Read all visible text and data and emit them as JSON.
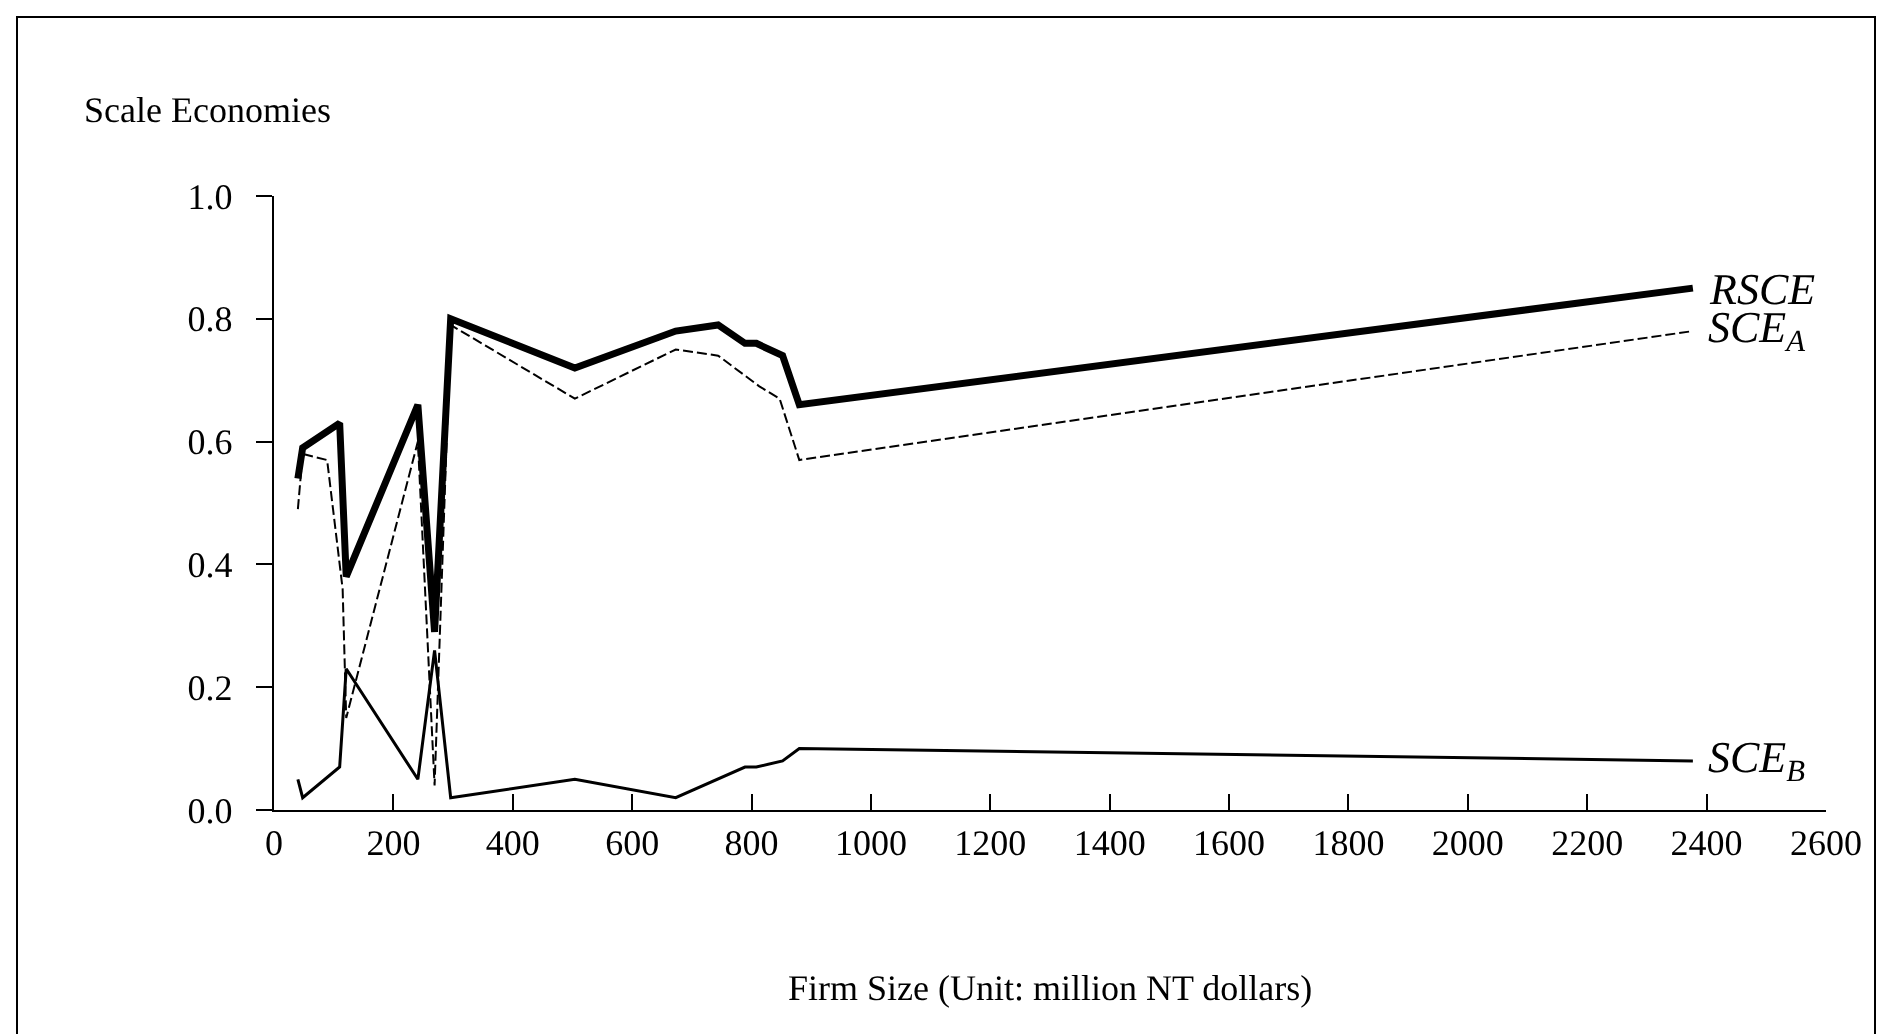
{
  "chart_data": {
    "type": "line",
    "xlabel": "Firm Size (Unit: million NT dollars)",
    "ylabel": "Scale Economies",
    "xlim": [
      0,
      2600
    ],
    "xticks": [
      0,
      200,
      400,
      600,
      800,
      1000,
      1200,
      1400,
      1600,
      1800,
      2000,
      2200,
      2400,
      2600
    ],
    "ylim": [
      0,
      1
    ],
    "yticks": [
      {
        "value": 0,
        "label": "0.0"
      },
      {
        "value": 0.2,
        "label": "0.2"
      },
      {
        "value": 0.4,
        "label": "0.4"
      },
      {
        "value": 0.6,
        "label": "0.6"
      },
      {
        "value": 0.8,
        "label": "0.8"
      },
      {
        "value": 1,
        "label": "1.0"
      }
    ],
    "grid": false,
    "legend": false,
    "marker": "none",
    "series": [
      {
        "name": "RSCE",
        "color": "#000000",
        "line_style": "solid",
        "x": [
          40,
          48,
          110,
          121,
          241,
          269,
          296,
          504,
          673,
          744,
          789,
          808,
          852,
          880,
          2377
        ],
        "values": [
          0.54,
          0.59,
          0.63,
          0.38,
          0.66,
          0.29,
          0.8,
          0.72,
          0.78,
          0.79,
          0.76,
          0.76,
          0.74,
          0.66,
          0.85
        ]
      },
      {
        "name": "SCE$_{A}$",
        "color": "#000000",
        "line_style": "dashed",
        "x": [
          40,
          48,
          89,
          115,
          121,
          241,
          269,
          296,
          504,
          673,
          744,
          813,
          847,
          880,
          2377
        ],
        "values": [
          0.49,
          0.58,
          0.57,
          0.36,
          0.15,
          0.6,
          0.04,
          0.79,
          0.67,
          0.75,
          0.74,
          0.69,
          0.67,
          0.57,
          0.78
        ]
      },
      {
        "name": "SCE$_{B}$",
        "color": "#000000",
        "line_style": "solid",
        "x": [
          40,
          48,
          110,
          121,
          241,
          269,
          296,
          504,
          673,
          789,
          808,
          852,
          880,
          2377
        ],
        "values": [
          0.05,
          0.02,
          0.07,
          0.23,
          0.05,
          0.26,
          0.02,
          0.05,
          0.02,
          0.07,
          0.07,
          0.08,
          0.1,
          0.08
        ]
      }
    ]
  }
}
